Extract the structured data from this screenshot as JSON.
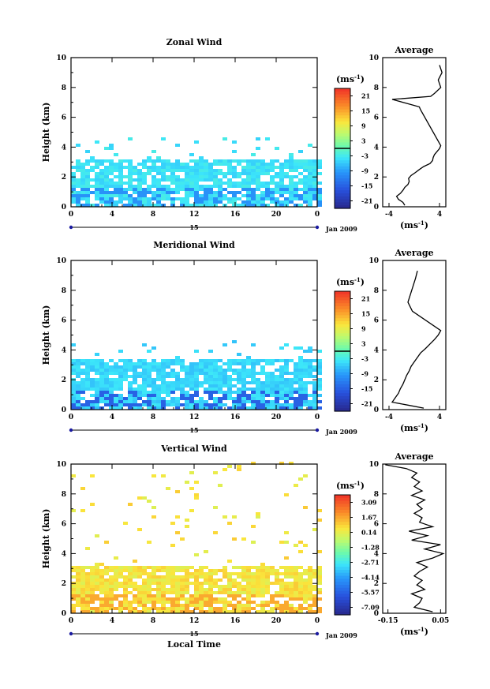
{
  "chart_data": [
    {
      "type": "heatmap",
      "title": "Zonal Wind",
      "ylabel": "Height (km)",
      "xlim": [
        0,
        24
      ],
      "ylim": [
        0,
        10
      ],
      "x_ticks": [
        "0",
        "4",
        "8",
        "12",
        "16",
        "20",
        "0"
      ],
      "y_ticks": [
        "0",
        "2",
        "4",
        "6",
        "8",
        "10"
      ],
      "day_label": "15",
      "month_label": "Jan 2009",
      "colorbar": {
        "unit": "(ms",
        "unit_exp": "-1",
        "unit_close": ")",
        "tick_labels": [
          "21",
          "15",
          "9",
          "3",
          "-3",
          "-9",
          "-15",
          "-21"
        ],
        "range": [
          -24,
          24
        ]
      },
      "fill": {
        "top_km": 3.1,
        "sparse_top_km": 4.6,
        "dominant_value": -4,
        "low_value": -10
      },
      "average": {
        "title": "Average",
        "xlabel": "(ms",
        "xlabel_exp": "-1",
        "xlabel_close": ")",
        "xlim": [
          -5,
          5
        ],
        "x_ticks": [
          "-4",
          "4"
        ],
        "y_ticks": [
          "0",
          "2",
          "4",
          "6",
          "8",
          "10"
        ],
        "height": [
          0.1,
          0.3,
          0.5,
          0.7,
          0.9,
          1.1,
          1.3,
          1.5,
          1.7,
          1.9,
          2.1,
          2.3,
          2.5,
          2.7,
          2.9,
          3.1,
          3.3,
          3.5,
          3.7,
          3.9,
          4.1,
          6.5,
          6.7,
          7.2,
          7.4,
          7.6,
          8.0,
          8.5,
          9.0,
          9.5
        ],
        "wind": [
          -1.5,
          -1.8,
          -2.5,
          -2.8,
          -2.2,
          -1.8,
          -1.5,
          -1.0,
          -0.8,
          -0.9,
          -0.5,
          0.2,
          0.8,
          1.5,
          2.5,
          2.9,
          3.0,
          3.2,
          3.6,
          4.0,
          4.2,
          1.0,
          0.8,
          -3.5,
          2.6,
          3.2,
          4.2,
          3.8,
          4.4,
          4.0
        ]
      }
    },
    {
      "type": "heatmap",
      "title": "Meridional Wind",
      "ylabel": "Height (km)",
      "xlim": [
        0,
        24
      ],
      "ylim": [
        0,
        10
      ],
      "x_ticks": [
        "0",
        "4",
        "8",
        "12",
        "16",
        "20",
        "0"
      ],
      "y_ticks": [
        "0",
        "2",
        "4",
        "6",
        "8",
        "10"
      ],
      "day_label": "15",
      "month_label": "Jan 2009",
      "colorbar": {
        "unit": "(ms",
        "unit_exp": "-1",
        "unit_close": ")",
        "tick_labels": [
          "21",
          "15",
          "9",
          "3",
          "-3",
          "-9",
          "-15",
          "-21"
        ],
        "range": [
          -24,
          24
        ]
      },
      "fill": {
        "top_km": 3.2,
        "sparse_top_km": 4.6,
        "dominant_value": -5,
        "low_value": -15
      },
      "average": {
        "title": "Average",
        "xlabel": "(ms",
        "xlabel_exp": "-1",
        "xlabel_close": ")",
        "xlim": [
          -5,
          5
        ],
        "x_ticks": [
          "-4",
          "4"
        ],
        "y_ticks": [
          "0",
          "2",
          "4",
          "6",
          "8",
          "10"
        ],
        "height": [
          0.1,
          0.3,
          0.5,
          0.8,
          1.1,
          1.4,
          1.7,
          2.0,
          2.3,
          2.6,
          2.9,
          3.2,
          3.5,
          3.8,
          4.1,
          4.4,
          4.7,
          5.0,
          5.3,
          6.6,
          7.2,
          8.8,
          9.3
        ],
        "wind": [
          1.5,
          -1.0,
          -3.5,
          -3.0,
          -2.5,
          -2.2,
          -1.8,
          -1.5,
          -1.2,
          -0.8,
          -0.5,
          0.0,
          0.5,
          1.0,
          1.8,
          2.5,
          3.2,
          3.8,
          4.2,
          -0.3,
          -1.0,
          0.2,
          0.5
        ]
      }
    },
    {
      "type": "heatmap",
      "title": "Vertical Wind",
      "xlabel": "Local Time",
      "ylabel": "Height (km)",
      "xlim": [
        0,
        24
      ],
      "ylim": [
        0,
        10
      ],
      "x_ticks": [
        "0",
        "4",
        "8",
        "12",
        "16",
        "20",
        "0"
      ],
      "y_ticks": [
        "0",
        "2",
        "4",
        "6",
        "8",
        "10"
      ],
      "day_label": "15",
      "month_label": "Jan 2009",
      "colorbar": {
        "unit": "(ms",
        "unit_exp": "-1",
        "unit_close": ")",
        "tick_labels": [
          "3.09",
          "1.67",
          "0.14",
          "-1.28",
          "-2.71",
          "-4.14",
          "-5.57",
          "-7.09"
        ],
        "range": [
          -8.5,
          4.5
        ]
      },
      "fill": {
        "top_km": 3.0,
        "sparse_top_km": 10.0,
        "dominant_value": 0.8,
        "low_value": 2.0
      },
      "average": {
        "title": "Average",
        "xlabel": "(ms",
        "xlabel_exp": "-1",
        "xlabel_close": ")",
        "xlim": [
          -0.17,
          0.07
        ],
        "x_ticks": [
          "-0.15",
          "0.05"
        ],
        "y_ticks": [
          "0",
          "2",
          "4",
          "6",
          "8",
          "10"
        ],
        "height": [
          0.1,
          0.4,
          0.7,
          1.0,
          1.3,
          1.6,
          1.9,
          2.2,
          2.5,
          2.8,
          3.1,
          3.4,
          3.7,
          4.0,
          4.3,
          4.6,
          4.9,
          5.2,
          5.5,
          5.8,
          6.1,
          6.4,
          6.7,
          7.0,
          7.3,
          7.6,
          7.9,
          8.2,
          8.5,
          8.8,
          9.1,
          9.4,
          9.7,
          9.95
        ],
        "wind": [
          0.02,
          -0.05,
          -0.03,
          -0.02,
          -0.06,
          -0.01,
          -0.04,
          -0.02,
          -0.05,
          -0.03,
          0.0,
          -0.04,
          0.02,
          0.06,
          -0.01,
          0.05,
          -0.06,
          0.0,
          -0.07,
          0.02,
          -0.03,
          -0.02,
          -0.05,
          -0.02,
          -0.04,
          -0.01,
          -0.06,
          -0.02,
          -0.05,
          -0.03,
          -0.06,
          -0.04,
          -0.08,
          -0.16
        ]
      }
    }
  ]
}
